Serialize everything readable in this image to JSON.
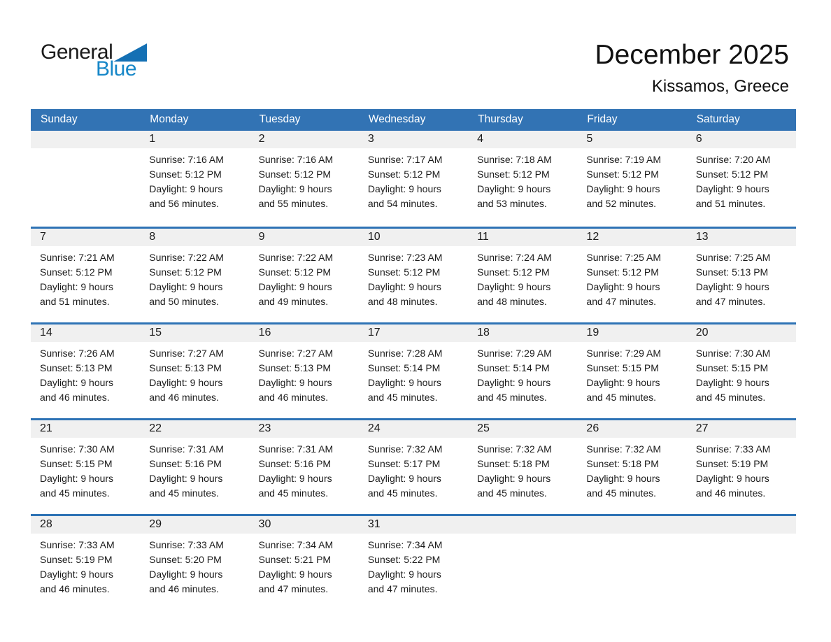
{
  "logo": {
    "word_top": "General",
    "word_bottom": "Blue"
  },
  "title": {
    "month": "December 2025",
    "location": "Kissamos, Greece"
  },
  "colors": {
    "header_bg": "#3273B4",
    "header_text": "#FFFFFF",
    "week_divider": "#2E73B5",
    "day_strip_bg": "#F0F0F0",
    "logo_triangle": "#1470B4",
    "logo_blue_text": "#1787C8",
    "body_text": "#1B1B1B"
  },
  "weekdays": [
    "Sunday",
    "Monday",
    "Tuesday",
    "Wednesday",
    "Thursday",
    "Friday",
    "Saturday"
  ],
  "weeks": [
    [
      {
        "day": "",
        "lines": []
      },
      {
        "day": "1",
        "lines": [
          "Sunrise: 7:16 AM",
          "Sunset: 5:12 PM",
          "Daylight: 9 hours",
          "and 56 minutes."
        ]
      },
      {
        "day": "2",
        "lines": [
          "Sunrise: 7:16 AM",
          "Sunset: 5:12 PM",
          "Daylight: 9 hours",
          "and 55 minutes."
        ]
      },
      {
        "day": "3",
        "lines": [
          "Sunrise: 7:17 AM",
          "Sunset: 5:12 PM",
          "Daylight: 9 hours",
          "and 54 minutes."
        ]
      },
      {
        "day": "4",
        "lines": [
          "Sunrise: 7:18 AM",
          "Sunset: 5:12 PM",
          "Daylight: 9 hours",
          "and 53 minutes."
        ]
      },
      {
        "day": "5",
        "lines": [
          "Sunrise: 7:19 AM",
          "Sunset: 5:12 PM",
          "Daylight: 9 hours",
          "and 52 minutes."
        ]
      },
      {
        "day": "6",
        "lines": [
          "Sunrise: 7:20 AM",
          "Sunset: 5:12 PM",
          "Daylight: 9 hours",
          "and 51 minutes."
        ]
      }
    ],
    [
      {
        "day": "7",
        "lines": [
          "Sunrise: 7:21 AM",
          "Sunset: 5:12 PM",
          "Daylight: 9 hours",
          "and 51 minutes."
        ]
      },
      {
        "day": "8",
        "lines": [
          "Sunrise: 7:22 AM",
          "Sunset: 5:12 PM",
          "Daylight: 9 hours",
          "and 50 minutes."
        ]
      },
      {
        "day": "9",
        "lines": [
          "Sunrise: 7:22 AM",
          "Sunset: 5:12 PM",
          "Daylight: 9 hours",
          "and 49 minutes."
        ]
      },
      {
        "day": "10",
        "lines": [
          "Sunrise: 7:23 AM",
          "Sunset: 5:12 PM",
          "Daylight: 9 hours",
          "and 48 minutes."
        ]
      },
      {
        "day": "11",
        "lines": [
          "Sunrise: 7:24 AM",
          "Sunset: 5:12 PM",
          "Daylight: 9 hours",
          "and 48 minutes."
        ]
      },
      {
        "day": "12",
        "lines": [
          "Sunrise: 7:25 AM",
          "Sunset: 5:12 PM",
          "Daylight: 9 hours",
          "and 47 minutes."
        ]
      },
      {
        "day": "13",
        "lines": [
          "Sunrise: 7:25 AM",
          "Sunset: 5:13 PM",
          "Daylight: 9 hours",
          "and 47 minutes."
        ]
      }
    ],
    [
      {
        "day": "14",
        "lines": [
          "Sunrise: 7:26 AM",
          "Sunset: 5:13 PM",
          "Daylight: 9 hours",
          "and 46 minutes."
        ]
      },
      {
        "day": "15",
        "lines": [
          "Sunrise: 7:27 AM",
          "Sunset: 5:13 PM",
          "Daylight: 9 hours",
          "and 46 minutes."
        ]
      },
      {
        "day": "16",
        "lines": [
          "Sunrise: 7:27 AM",
          "Sunset: 5:13 PM",
          "Daylight: 9 hours",
          "and 46 minutes."
        ]
      },
      {
        "day": "17",
        "lines": [
          "Sunrise: 7:28 AM",
          "Sunset: 5:14 PM",
          "Daylight: 9 hours",
          "and 45 minutes."
        ]
      },
      {
        "day": "18",
        "lines": [
          "Sunrise: 7:29 AM",
          "Sunset: 5:14 PM",
          "Daylight: 9 hours",
          "and 45 minutes."
        ]
      },
      {
        "day": "19",
        "lines": [
          "Sunrise: 7:29 AM",
          "Sunset: 5:15 PM",
          "Daylight: 9 hours",
          "and 45 minutes."
        ]
      },
      {
        "day": "20",
        "lines": [
          "Sunrise: 7:30 AM",
          "Sunset: 5:15 PM",
          "Daylight: 9 hours",
          "and 45 minutes."
        ]
      }
    ],
    [
      {
        "day": "21",
        "lines": [
          "Sunrise: 7:30 AM",
          "Sunset: 5:15 PM",
          "Daylight: 9 hours",
          "and 45 minutes."
        ]
      },
      {
        "day": "22",
        "lines": [
          "Sunrise: 7:31 AM",
          "Sunset: 5:16 PM",
          "Daylight: 9 hours",
          "and 45 minutes."
        ]
      },
      {
        "day": "23",
        "lines": [
          "Sunrise: 7:31 AM",
          "Sunset: 5:16 PM",
          "Daylight: 9 hours",
          "and 45 minutes."
        ]
      },
      {
        "day": "24",
        "lines": [
          "Sunrise: 7:32 AM",
          "Sunset: 5:17 PM",
          "Daylight: 9 hours",
          "and 45 minutes."
        ]
      },
      {
        "day": "25",
        "lines": [
          "Sunrise: 7:32 AM",
          "Sunset: 5:18 PM",
          "Daylight: 9 hours",
          "and 45 minutes."
        ]
      },
      {
        "day": "26",
        "lines": [
          "Sunrise: 7:32 AM",
          "Sunset: 5:18 PM",
          "Daylight: 9 hours",
          "and 45 minutes."
        ]
      },
      {
        "day": "27",
        "lines": [
          "Sunrise: 7:33 AM",
          "Sunset: 5:19 PM",
          "Daylight: 9 hours",
          "and 46 minutes."
        ]
      }
    ],
    [
      {
        "day": "28",
        "lines": [
          "Sunrise: 7:33 AM",
          "Sunset: 5:19 PM",
          "Daylight: 9 hours",
          "and 46 minutes."
        ]
      },
      {
        "day": "29",
        "lines": [
          "Sunrise: 7:33 AM",
          "Sunset: 5:20 PM",
          "Daylight: 9 hours",
          "and 46 minutes."
        ]
      },
      {
        "day": "30",
        "lines": [
          "Sunrise: 7:34 AM",
          "Sunset: 5:21 PM",
          "Daylight: 9 hours",
          "and 47 minutes."
        ]
      },
      {
        "day": "31",
        "lines": [
          "Sunrise: 7:34 AM",
          "Sunset: 5:22 PM",
          "Daylight: 9 hours",
          "and 47 minutes."
        ]
      },
      {
        "day": "",
        "lines": []
      },
      {
        "day": "",
        "lines": []
      },
      {
        "day": "",
        "lines": []
      }
    ]
  ]
}
